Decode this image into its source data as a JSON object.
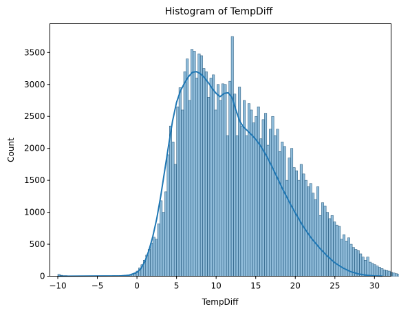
{
  "chart_data": {
    "type": "bar",
    "title": "Histogram of TempDiff",
    "xlabel": "TempDiff",
    "ylabel": "Count",
    "xlim": [
      -11,
      32.1
    ],
    "ylim": [
      0,
      3950
    ],
    "xticks": [
      -10,
      -5,
      0,
      5,
      10,
      15,
      20,
      25,
      30
    ],
    "yticks": [
      0,
      500,
      1000,
      1500,
      2000,
      2500,
      3000,
      3500
    ],
    "grid": false,
    "legend": "none",
    "bar_color": "#1f77b4",
    "kde_color": "#1f77b4",
    "bins": {
      "x_start": -10,
      "bin_width": 0.3,
      "values": [
        30,
        15,
        10,
        10,
        8,
        8,
        8,
        8,
        8,
        8,
        8,
        8,
        8,
        8,
        8,
        8,
        8,
        8,
        8,
        8,
        8,
        8,
        8,
        10,
        10,
        10,
        12,
        14,
        16,
        20,
        25,
        30,
        40,
        80,
        130,
        180,
        250,
        330,
        420,
        520,
        610,
        580,
        820,
        1180,
        1000,
        1320,
        1900,
        2350,
        2100,
        1750,
        2650,
        2950,
        2600,
        3200,
        3400,
        2750,
        3550,
        3520,
        3100,
        3480,
        3450,
        3250,
        3200,
        2800,
        3100,
        3150,
        2600,
        3000,
        2750,
        3010,
        3000,
        2200,
        3050,
        3750,
        2850,
        2200,
        2960,
        2350,
        2750,
        2200,
        2700,
        2600,
        2400,
        2500,
        2650,
        2150,
        2450,
        2550,
        2050,
        2300,
        2500,
        2200,
        2300,
        1950,
        2100,
        2030,
        1500,
        1850,
        2000,
        1700,
        1650,
        1500,
        1750,
        1600,
        1500,
        1400,
        1450,
        1300,
        1200,
        1400,
        950,
        1150,
        1100,
        1000,
        900,
        950,
        850,
        800,
        780,
        580,
        650,
        550,
        600,
        500,
        450,
        420,
        400,
        350,
        300,
        250,
        300,
        220,
        200,
        180,
        160,
        140,
        120,
        100,
        90,
        80,
        60,
        50,
        40,
        30,
        25,
        20,
        15,
        12,
        10,
        8,
        6,
        5,
        4,
        3,
        2
      ]
    },
    "kde": {
      "x": [
        -10,
        -2,
        -1,
        0,
        0.5,
        1,
        1.5,
        2,
        2.5,
        3,
        3.5,
        4,
        4.5,
        5,
        5.5,
        6,
        6.5,
        7,
        7.5,
        8,
        8.5,
        9,
        9.5,
        10,
        10.5,
        11,
        11.5,
        12,
        12.5,
        13,
        13.5,
        14,
        14.5,
        15,
        15.5,
        16,
        16.5,
        17,
        17.5,
        18,
        18.5,
        19,
        19.5,
        20,
        21,
        22,
        23,
        24,
        25,
        26,
        27,
        28,
        29,
        30,
        31
      ],
      "y": [
        0,
        5,
        15,
        60,
        120,
        230,
        400,
        620,
        900,
        1250,
        1650,
        2050,
        2430,
        2720,
        2900,
        3020,
        3120,
        3190,
        3200,
        3170,
        3110,
        3030,
        2940,
        2860,
        2810,
        2860,
        2870,
        2800,
        2600,
        2420,
        2330,
        2270,
        2210,
        2140,
        2060,
        1960,
        1850,
        1730,
        1600,
        1470,
        1340,
        1220,
        1100,
        990,
        780,
        600,
        450,
        320,
        210,
        130,
        70,
        35,
        15,
        6,
        2
      ]
    }
  }
}
